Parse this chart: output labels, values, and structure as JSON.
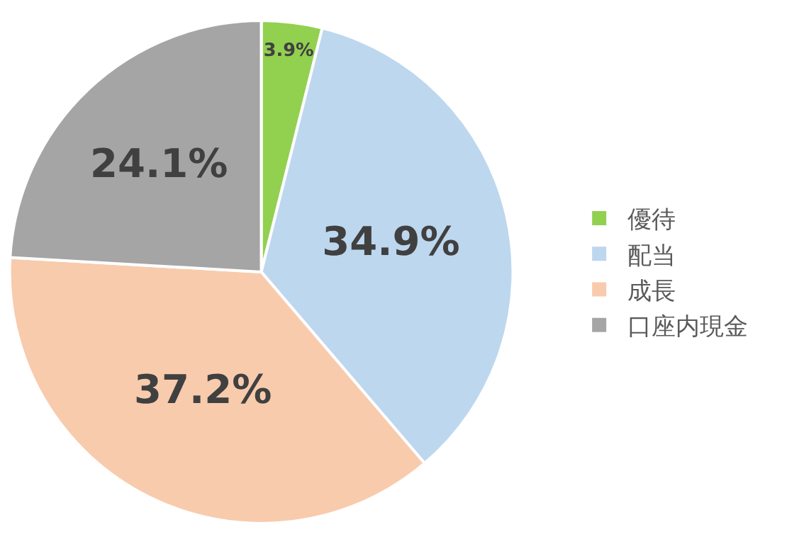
{
  "chart_data": {
    "type": "pie",
    "categories": [
      "優待",
      "配当",
      "成長",
      "口座内現金"
    ],
    "values": [
      3.9,
      34.9,
      37.2,
      24.1
    ],
    "value_labels": [
      "3.9%",
      "34.9%",
      "37.2%",
      "24.1%"
    ],
    "colors": [
      "#92d050",
      "#bdd7ee",
      "#f8cbad",
      "#a5a5a5"
    ],
    "legend": "right"
  }
}
